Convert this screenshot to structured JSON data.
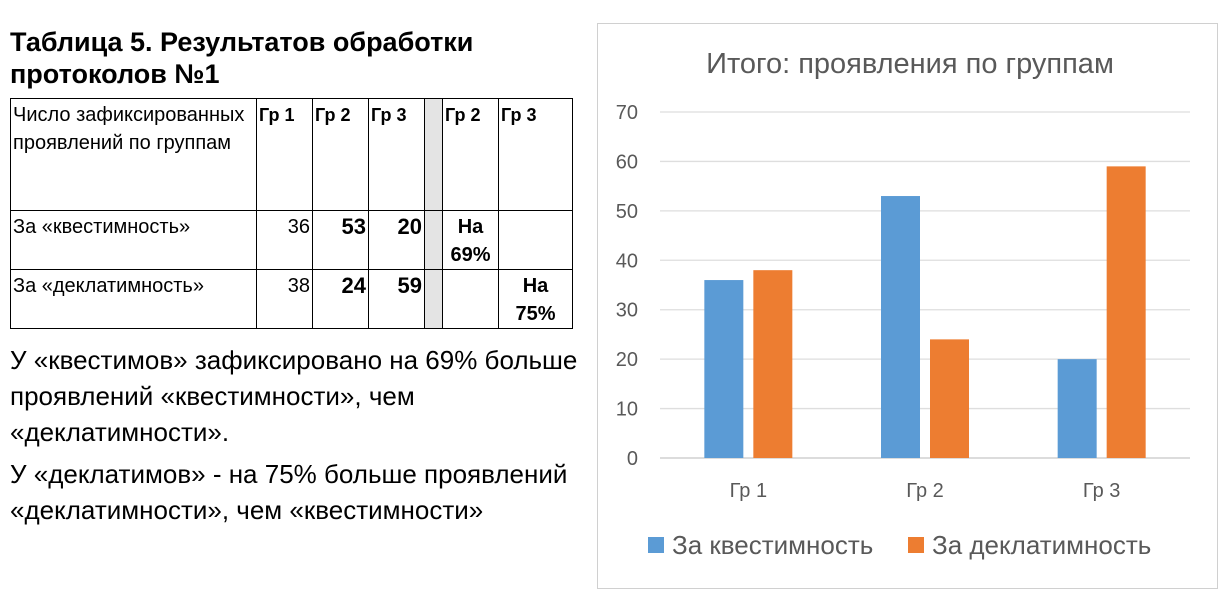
{
  "document": {
    "title": "Таблица 5. Результатов обработки протоколов №1",
    "table": {
      "header": {
        "label": "Число зафиксированных проявлений по группам",
        "col1": "Гр 1",
        "col2": "Гр 2",
        "col3": "Гр 3",
        "col5": "Гр 2",
        "col6": "Гр 3"
      },
      "rows": [
        {
          "label": "За «квестимность»",
          "gr1": "36",
          "gr2": "53",
          "gr3": "20",
          "pct_gr2": "На 69%",
          "pct_gr3": ""
        },
        {
          "label": "За «деклатимность»",
          "gr1": "38",
          "gr2": "24",
          "gr3": "59",
          "pct_gr2": "",
          "pct_gr3": "На 75%"
        }
      ]
    },
    "paragraphs": [
      "У «квестимов» зафиксировано на 69% больше проявлений «квестимности», чем «деклатимности».",
      "У «деклатимов» - на 75% больше проявлений «деклатимности», чем «квестимности»"
    ]
  },
  "chart_data": {
    "type": "bar",
    "title": "Итого: проявления по группам",
    "categories": [
      "Гр 1",
      "Гр 2",
      "Гр 3"
    ],
    "series": [
      {
        "name": "За квестимность",
        "color": "#5b9bd5",
        "values": [
          36,
          53,
          20
        ]
      },
      {
        "name": "За деклатимность",
        "color": "#ed7d31",
        "values": [
          38,
          24,
          59
        ]
      }
    ],
    "ylim": [
      0,
      70
    ],
    "yticks": [
      0,
      10,
      20,
      30,
      40,
      50,
      60,
      70
    ],
    "grid": true,
    "legend": "bottom"
  }
}
